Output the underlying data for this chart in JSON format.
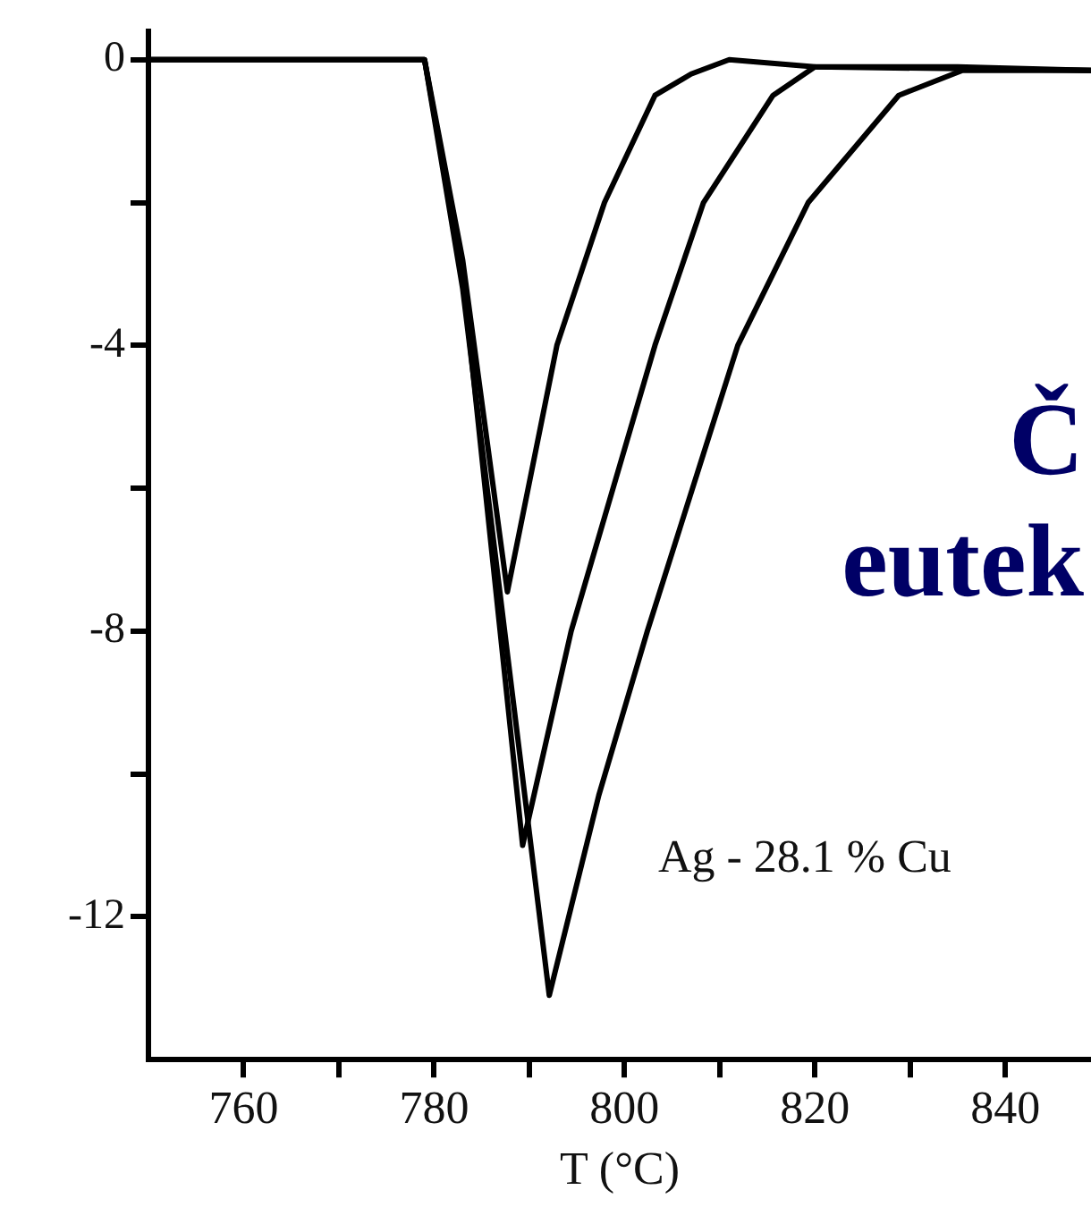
{
  "chart_data": {
    "type": "line",
    "xlabel": "T (°C)",
    "xlim": [
      750,
      849
    ],
    "ylim": [
      -14,
      0.4
    ],
    "xticks": [
      760,
      {
        "value": 770,
        "label": null
      },
      780,
      {
        "value": 790,
        "label": null
      },
      800,
      {
        "value": 810,
        "label": null
      },
      820,
      {
        "value": 830,
        "label": null
      },
      840
    ],
    "yticks": [
      0,
      {
        "value": -2,
        "label": null
      },
      -4,
      {
        "value": -6,
        "label": null
      },
      -8,
      {
        "value": -10,
        "label": null
      },
      -12
    ],
    "grid": false,
    "legend": false,
    "marker": "none",
    "line_style": "solid",
    "annotations": [
      "Ag - 28.1 % Cu",
      "Č",
      "eutek"
    ],
    "series": [
      {
        "color": "#000000",
        "x": [
          750,
          779,
          783,
          787.7,
          792.9,
          797.9,
          803.2,
          807,
          811,
          820,
          849
        ],
        "values": [
          0,
          0,
          -2.8,
          -7.45,
          -4,
          -2,
          -0.5,
          -0.2,
          0,
          -0.1,
          -0.15
        ]
      },
      {
        "color": "#000000",
        "x": [
          750,
          779,
          783,
          789.3,
          794.4,
          803.2,
          808.3,
          815.6,
          820,
          835,
          849
        ],
        "values": [
          0,
          0,
          -3,
          -11,
          -8,
          -4,
          -2,
          -0.5,
          -0.1,
          -0.1,
          -0.15
        ]
      },
      {
        "color": "#000000",
        "x": [
          750,
          779,
          783,
          792.1,
          797.3,
          802.4,
          811.9,
          819.3,
          828.8,
          835.5,
          849
        ],
        "values": [
          0,
          0,
          -3.2,
          -13.1,
          -10.3,
          -8,
          -4,
          -2,
          -0.5,
          -0.15,
          -0.15
        ]
      }
    ]
  }
}
